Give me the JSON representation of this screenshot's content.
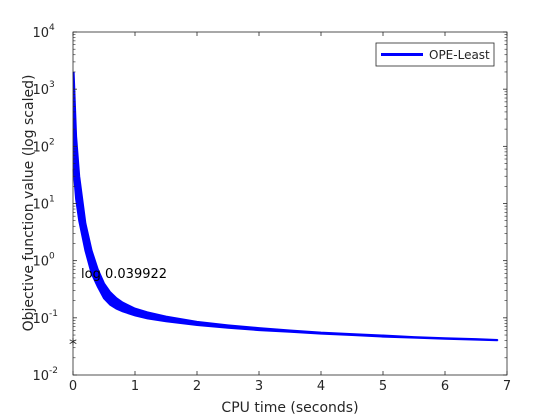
{
  "chart_data": {
    "type": "line",
    "xlabel": "CPU time (seconds)",
    "ylabel": "Objective function value (log scaled)",
    "xlim": [
      0,
      7
    ],
    "ylim_log10": [
      -2,
      4
    ],
    "y_scale": "log",
    "grid": false,
    "legend_position": "top-right",
    "x_ticks": [
      "0",
      "1",
      "2",
      "3",
      "4",
      "5",
      "6",
      "7"
    ],
    "y_ticks": [
      {
        "base": "10",
        "exp": "-2"
      },
      {
        "base": "10",
        "exp": "-1"
      },
      {
        "base": "10",
        "exp": "0"
      },
      {
        "base": "10",
        "exp": "1"
      },
      {
        "base": "10",
        "exp": "2"
      },
      {
        "base": "10",
        "exp": "3"
      },
      {
        "base": "10",
        "exp": "4"
      }
    ],
    "series": [
      {
        "name": "OPE-Least",
        "color": "#0000ff",
        "upper": {
          "x": [
            0.01,
            0.05,
            0.1,
            0.2,
            0.3,
            0.4,
            0.5,
            0.6,
            0.7,
            0.8,
            1.0,
            1.2,
            1.5,
            2.0,
            2.5,
            3.0,
            3.5,
            4.0,
            4.5,
            5.0,
            5.5,
            6.0,
            6.5,
            6.85
          ],
          "y": [
            2000,
            150,
            30,
            4.5,
            1.5,
            0.7,
            0.4,
            0.28,
            0.22,
            0.185,
            0.145,
            0.125,
            0.105,
            0.085,
            0.074,
            0.066,
            0.06,
            0.055,
            0.052,
            0.049,
            0.046,
            0.044,
            0.0425,
            0.041
          ]
        },
        "lower": {
          "x": [
            0.01,
            0.05,
            0.1,
            0.2,
            0.3,
            0.4,
            0.5,
            0.6,
            0.7,
            0.8,
            1.0,
            1.2,
            1.5,
            2.0,
            2.5,
            3.0,
            3.5,
            4.0,
            4.5,
            5.0,
            5.5,
            6.0,
            6.5,
            6.85
          ],
          "y": [
            40,
            12,
            5,
            1.5,
            0.6,
            0.35,
            0.22,
            0.17,
            0.145,
            0.13,
            0.11,
            0.098,
            0.087,
            0.075,
            0.067,
            0.061,
            0.057,
            0.053,
            0.05,
            0.047,
            0.045,
            0.043,
            0.0415,
            0.0405
          ]
        }
      }
    ],
    "annotation": {
      "text": "log 0.039922",
      "x": 0.13,
      "y": 0.5
    },
    "marker": {
      "symbol": "*",
      "x": 0,
      "y": 0.039922
    }
  }
}
